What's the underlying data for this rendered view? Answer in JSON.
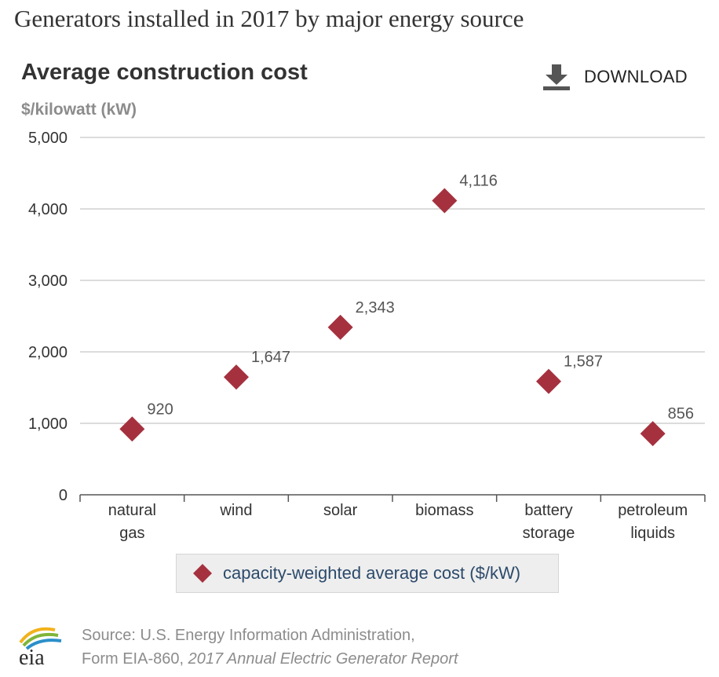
{
  "header": {
    "page_title": "Generators installed in 2017 by major energy source",
    "chart_title": "Average construction cost",
    "unit_label": "$/kilowatt (kW)",
    "download_label": "DOWNLOAD",
    "download_icon": "download-icon"
  },
  "chart_data": {
    "type": "scatter",
    "title": "Average construction cost",
    "ylabel": "$/kilowatt (kW)",
    "xlabel": "",
    "categories": [
      [
        "natural",
        "gas"
      ],
      [
        "wind"
      ],
      [
        "solar"
      ],
      [
        "biomass"
      ],
      [
        "battery",
        "storage"
      ],
      [
        "petroleum",
        "liquids"
      ]
    ],
    "series": [
      {
        "name": "capacity-weighted average cost ($/kW)",
        "values": [
          920,
          1647,
          2343,
          4116,
          1587,
          856
        ],
        "labels": [
          "920",
          "1,647",
          "2,343",
          "4,116",
          "1,587",
          "856"
        ],
        "color": "#a5313f",
        "marker": "diamond"
      }
    ],
    "ylim": [
      0,
      5000
    ],
    "yticks": [
      0,
      1000,
      2000,
      3000,
      4000,
      5000
    ],
    "ytick_labels": [
      "0",
      "1,000",
      "2,000",
      "3,000",
      "4,000",
      "5,000"
    ],
    "grid": true,
    "legend": "bottom-center"
  },
  "legend": {
    "label": "capacity-weighted average cost ($/kW)"
  },
  "source": {
    "line1": "Source: U.S. Energy Information Administration,",
    "line2_prefix": "Form EIA-860, ",
    "line2_report": "2017 Annual Electric Generator Report",
    "logo_text": "eia"
  },
  "colors": {
    "marker": "#a5313f",
    "grid": "#c8c8c8",
    "axis": "#555555",
    "text": "#333333",
    "muted": "#8c8c8c",
    "legend_text": "#2c4a6b"
  }
}
